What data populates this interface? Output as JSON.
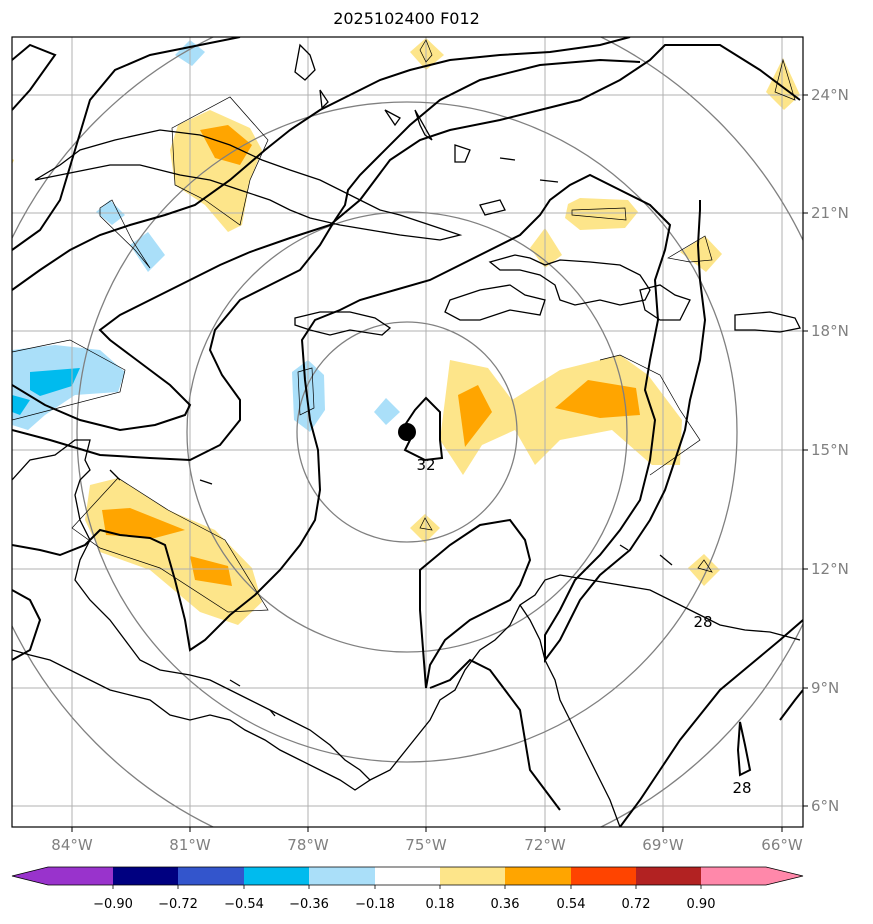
{
  "title": "2025102400 F012",
  "map": {
    "lon_labels": [
      "84°W",
      "81°W",
      "78°W",
      "75°W",
      "72°W",
      "69°W",
      "66°W"
    ],
    "lat_labels": [
      "24°N",
      "21°N",
      "18°N",
      "15°N",
      "12°N",
      "9°N",
      "6°N"
    ],
    "contour_labels": [
      "32",
      "28",
      "28"
    ],
    "storm_center": {
      "lon": -75.45,
      "lat": 15.45
    }
  },
  "colorbar": {
    "tick_labels": [
      "−0.90",
      "−0.72",
      "−0.54",
      "−0.36",
      "−0.18",
      "0.18",
      "0.36",
      "0.54",
      "0.72",
      "0.90"
    ],
    "colors": [
      "#9933cc",
      "#000080",
      "#3355cc",
      "#00bbee",
      "#aadff9",
      "#ffffff",
      "#fde58a",
      "#ffa500",
      "#ff4400",
      "#b22222",
      "#ff88aa"
    ]
  }
}
